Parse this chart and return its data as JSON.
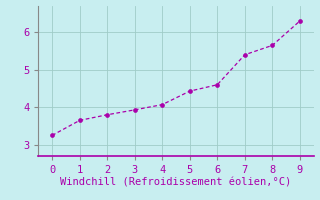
{
  "x": [
    0,
    1,
    2,
    3,
    4,
    5,
    6,
    7,
    8,
    9
  ],
  "y": [
    3.25,
    3.65,
    3.8,
    3.93,
    4.07,
    4.43,
    4.6,
    5.4,
    5.65,
    6.3
  ],
  "line_color": "#aa00aa",
  "marker_color": "#aa00aa",
  "background_color": "#c8eef0",
  "grid_color": "#a0ccc8",
  "spine_color": "#888888",
  "bottom_spine_color": "#aa00aa",
  "xlabel": "Windchill (Refroidissement éolien,°C)",
  "xlabel_color": "#aa00aa",
  "xlabel_fontsize": 7.5,
  "tick_color": "#aa00aa",
  "tick_fontsize": 7.5,
  "xlim": [
    -0.5,
    9.5
  ],
  "ylim": [
    2.7,
    6.7
  ],
  "yticks": [
    3,
    4,
    5,
    6
  ],
  "xticks": [
    0,
    1,
    2,
    3,
    4,
    5,
    6,
    7,
    8,
    9
  ]
}
